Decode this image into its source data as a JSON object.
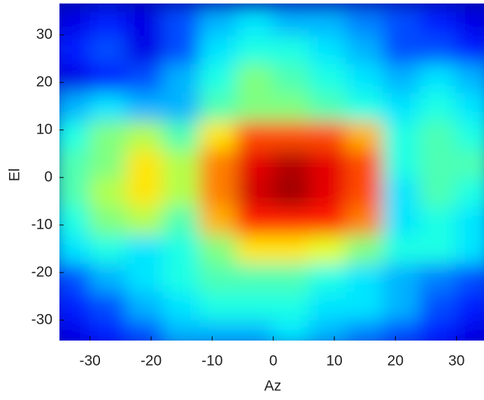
{
  "chart_data": {
    "type": "heatmap",
    "colormap": "jet",
    "xlabel": "Az",
    "ylabel": "El",
    "xlim": [
      -35,
      34.5
    ],
    "ylim": [
      -34.3,
      36.6
    ],
    "xticks": [
      -30,
      -20,
      -10,
      0,
      10,
      20,
      30
    ],
    "yticks": [
      -30,
      -20,
      -10,
      0,
      10,
      20,
      30
    ],
    "x": [
      -33,
      -27,
      -21,
      -15,
      -9,
      -3,
      3,
      9,
      15,
      21,
      27,
      33
    ],
    "y": [
      -33,
      -27,
      -21,
      -15,
      -9,
      -3,
      3,
      9,
      15,
      21,
      27,
      33
    ],
    "z": [
      [
        0.1,
        0.15,
        0.2,
        0.3,
        0.3,
        0.3,
        0.35,
        0.3,
        0.25,
        0.2,
        0.15,
        0.1
      ],
      [
        0.15,
        0.2,
        0.3,
        0.35,
        0.4,
        0.4,
        0.4,
        0.35,
        0.35,
        0.3,
        0.2,
        0.15
      ],
      [
        0.2,
        0.3,
        0.35,
        0.4,
        0.45,
        0.45,
        0.45,
        0.4,
        0.35,
        0.3,
        0.25,
        0.2
      ],
      [
        0.35,
        0.4,
        0.35,
        0.4,
        0.5,
        0.65,
        0.65,
        0.6,
        0.5,
        0.4,
        0.4,
        0.35
      ],
      [
        0.4,
        0.5,
        0.55,
        0.45,
        0.7,
        0.85,
        0.85,
        0.85,
        0.75,
        0.35,
        0.4,
        0.35
      ],
      [
        0.45,
        0.55,
        0.65,
        0.55,
        0.75,
        0.92,
        0.97,
        0.9,
        0.8,
        0.35,
        0.45,
        0.4
      ],
      [
        0.45,
        0.5,
        0.65,
        0.55,
        0.75,
        0.9,
        0.95,
        0.9,
        0.8,
        0.4,
        0.45,
        0.45
      ],
      [
        0.4,
        0.5,
        0.55,
        0.45,
        0.65,
        0.8,
        0.8,
        0.8,
        0.7,
        0.4,
        0.45,
        0.4
      ],
      [
        0.3,
        0.35,
        0.3,
        0.3,
        0.45,
        0.5,
        0.5,
        0.45,
        0.4,
        0.35,
        0.4,
        0.35
      ],
      [
        0.1,
        0.15,
        0.2,
        0.3,
        0.4,
        0.5,
        0.45,
        0.4,
        0.35,
        0.3,
        0.35,
        0.3
      ],
      [
        0.15,
        0.2,
        0.1,
        0.2,
        0.35,
        0.4,
        0.4,
        0.35,
        0.3,
        0.2,
        0.2,
        0.15
      ],
      [
        0.1,
        0.15,
        0.1,
        0.2,
        0.3,
        0.35,
        0.3,
        0.3,
        0.25,
        0.2,
        0.15,
        0.1
      ]
    ]
  }
}
